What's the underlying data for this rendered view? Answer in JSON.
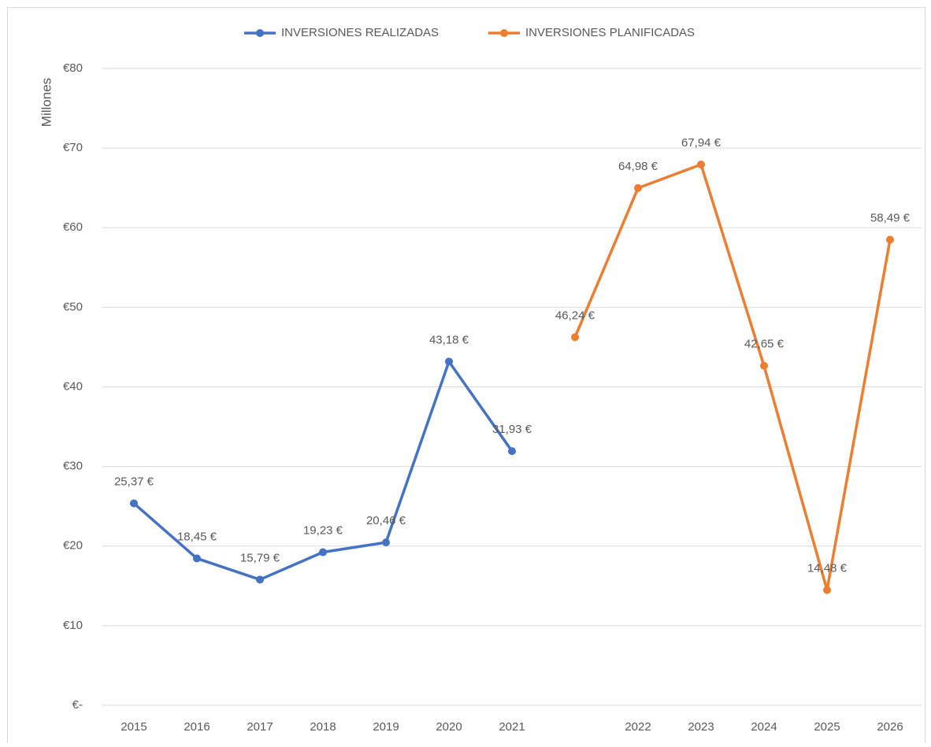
{
  "chart_data": {
    "type": "line",
    "y_axis_label": "Millones",
    "categories": [
      "2015",
      "2016",
      "2017",
      "2018",
      "2019",
      "2020",
      "2021",
      null,
      "2022",
      "2023",
      "2024",
      "2025",
      "2026"
    ],
    "series": [
      {
        "name": "INVERSIONES REALIZADAS",
        "color": "#4472c4",
        "values": [
          25.37,
          18.45,
          15.79,
          19.23,
          20.46,
          43.18,
          31.93,
          null,
          null,
          null,
          null,
          null,
          null
        ],
        "value_labels": [
          "25,37 €",
          "18,45 €",
          "15,79 €",
          "19,23 €",
          "20,46 €",
          "43,18 €",
          "31,93 €",
          null,
          null,
          null,
          null,
          null,
          null
        ]
      },
      {
        "name": "INVERSIONES PLANIFICADAS",
        "color": "#ed7d31",
        "values": [
          null,
          null,
          null,
          null,
          null,
          null,
          null,
          46.24,
          64.98,
          67.94,
          42.65,
          14.48,
          58.49
        ],
        "value_labels": [
          null,
          null,
          null,
          null,
          null,
          null,
          null,
          "46,24 €",
          "64,98 €",
          "67,94 €",
          "42,65 €",
          "14,48 €",
          "58,49 €"
        ]
      }
    ],
    "ylim": [
      0,
      80
    ],
    "yticks": [
      {
        "value": 0,
        "label": "€-"
      },
      {
        "value": 10,
        "label": "€10"
      },
      {
        "value": 20,
        "label": "€20"
      },
      {
        "value": 30,
        "label": "€30"
      },
      {
        "value": 40,
        "label": "€40"
      },
      {
        "value": 50,
        "label": "€50"
      },
      {
        "value": 60,
        "label": "€60"
      },
      {
        "value": 70,
        "label": "€70"
      },
      {
        "value": 80,
        "label": "€80"
      }
    ],
    "grid": true,
    "legend": "top"
  }
}
